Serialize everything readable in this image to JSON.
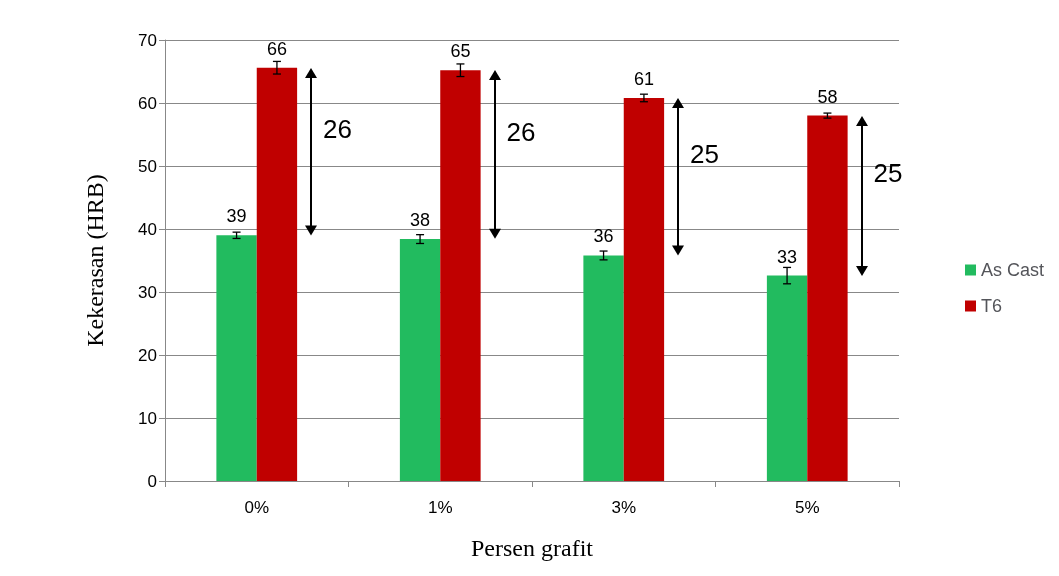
{
  "chart_data": {
    "type": "bar",
    "xlabel": "Persen grafit",
    "ylabel": "Kekerasan (HRB)",
    "categories": [
      "0%",
      "1%",
      "3%",
      "5%"
    ],
    "series": [
      {
        "name": "As Cast",
        "color": "#22bb5f",
        "values": [
          39.0,
          38.4,
          35.8,
          32.6
        ],
        "errors": [
          0.5,
          0.7,
          0.7,
          1.3
        ],
        "value_labels": [
          "39",
          "38",
          "36",
          "33"
        ]
      },
      {
        "name": "T6",
        "color": "#c00000",
        "values": [
          65.6,
          65.2,
          60.8,
          58.0
        ],
        "errors": [
          1.0,
          1.0,
          0.6,
          0.4
        ],
        "value_labels": [
          "66",
          "65",
          "61",
          "58"
        ]
      }
    ],
    "ylim": [
      0,
      70
    ],
    "yticks": [
      0,
      10,
      20,
      30,
      40,
      50,
      60,
      70
    ],
    "grid": "y",
    "legend": "right",
    "annotations": [
      "26",
      "26",
      "25",
      "25"
    ]
  }
}
